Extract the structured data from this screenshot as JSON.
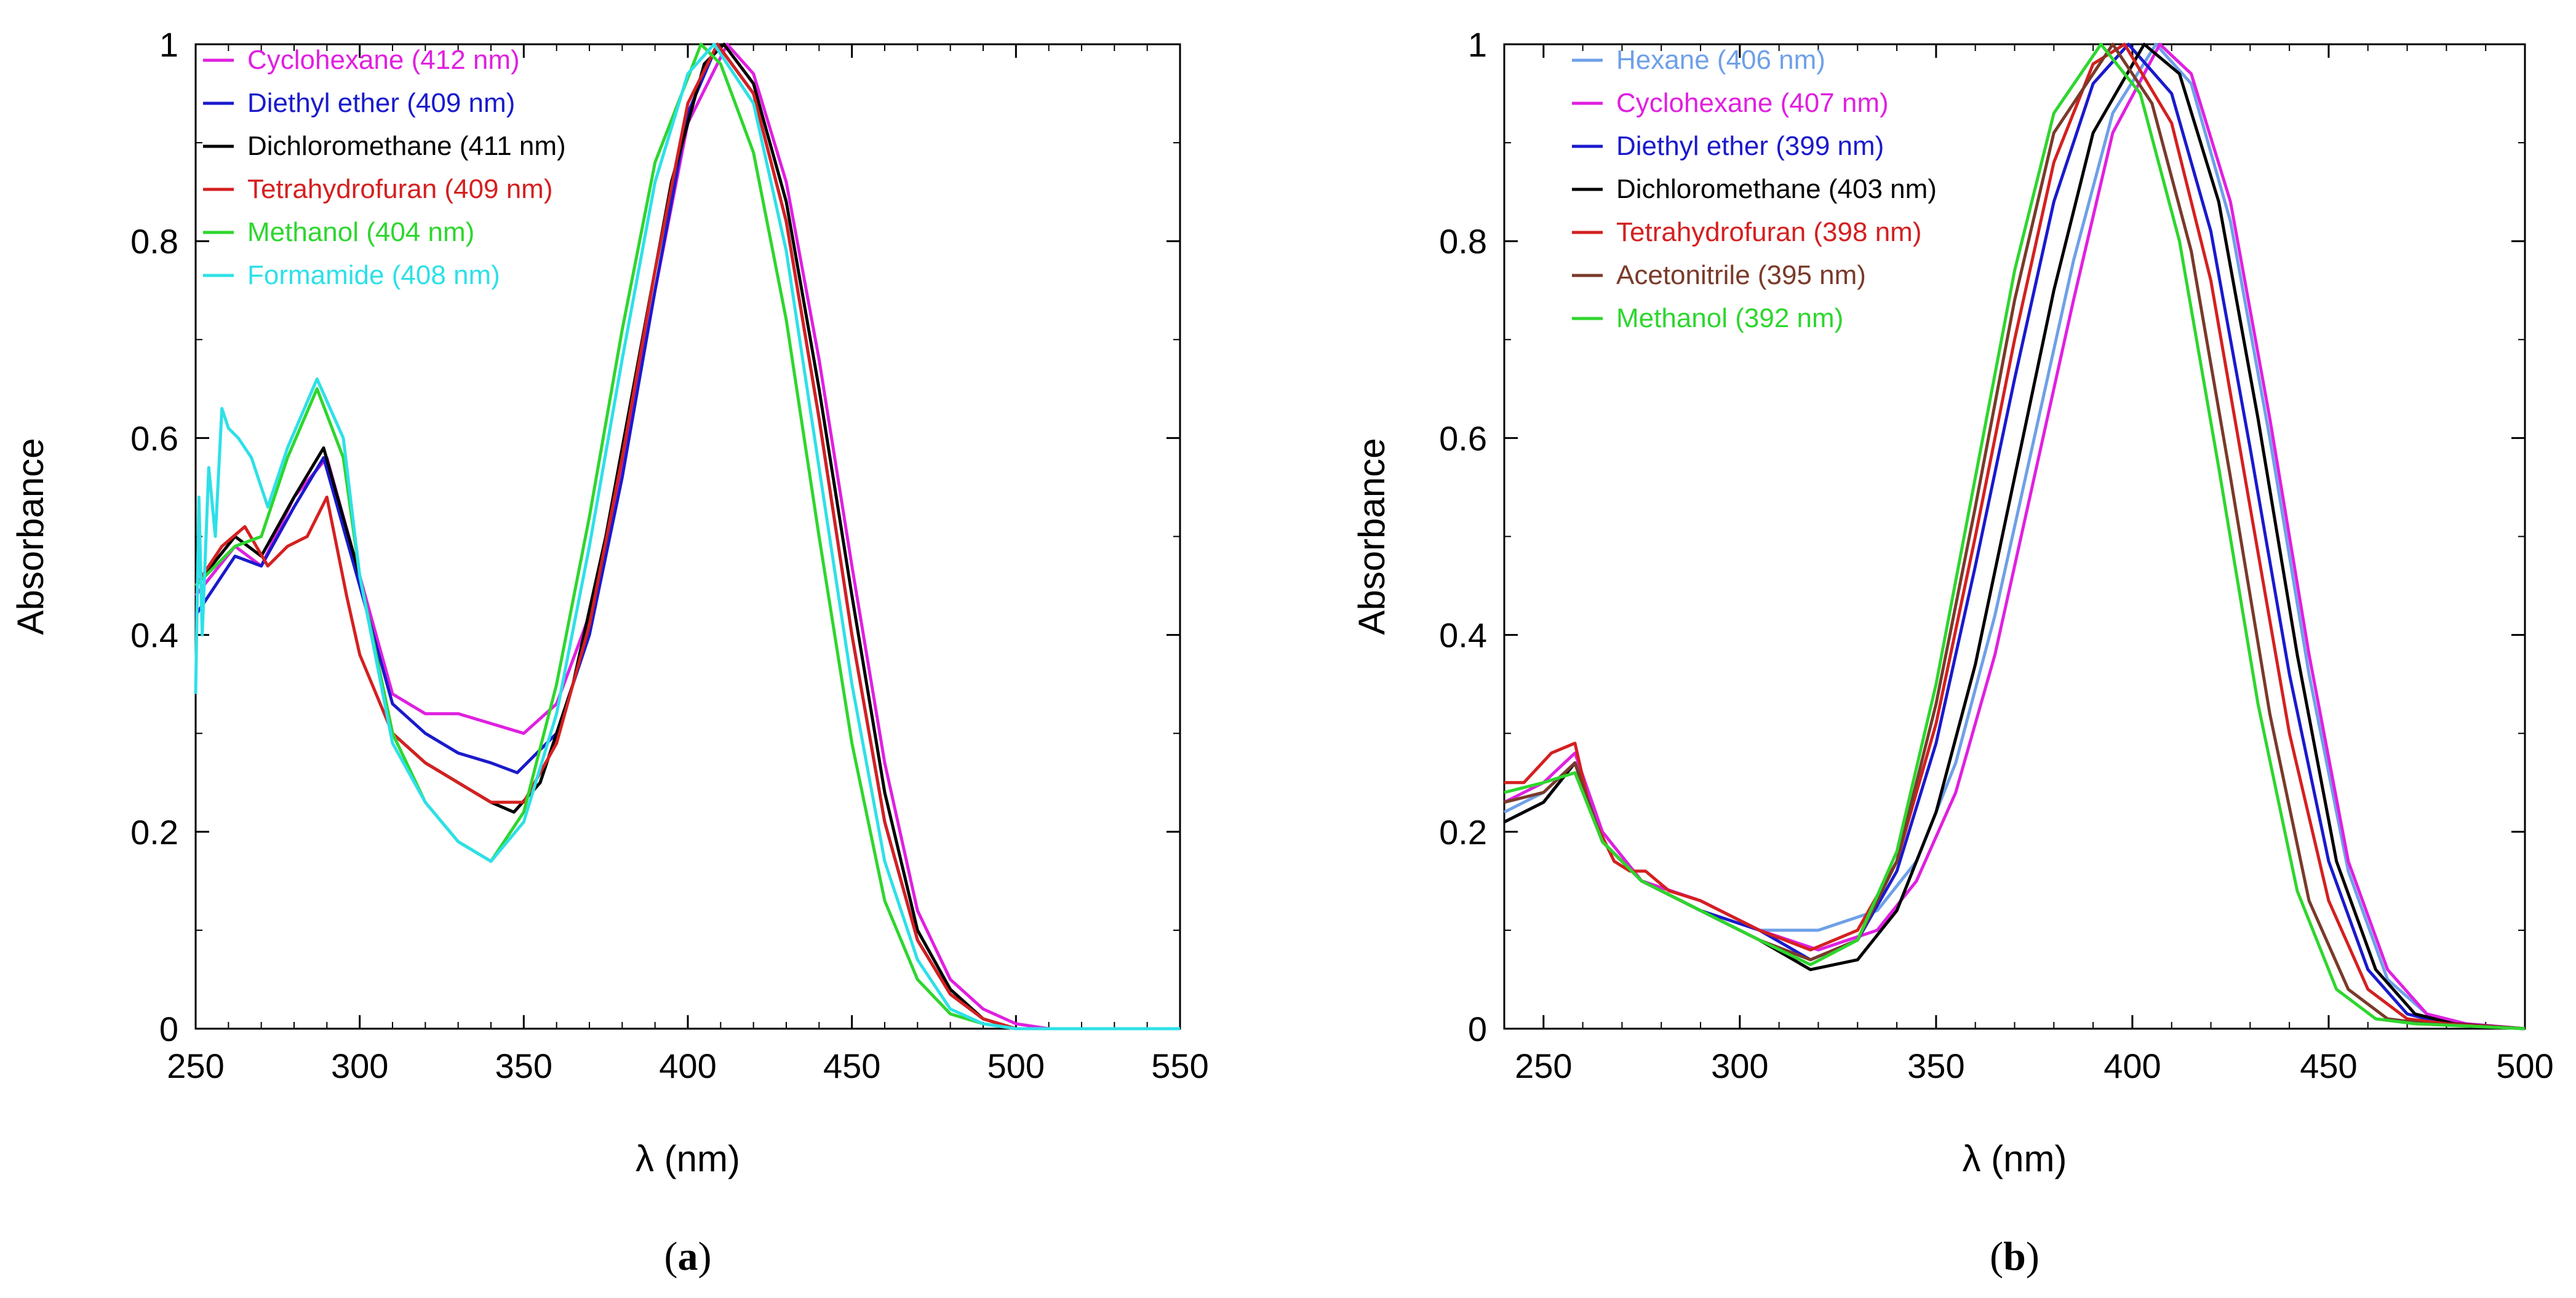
{
  "colors": {
    "hexane": "#6fa0e8",
    "cyclohexane": "#e020e0",
    "diethyl_ether": "#1a1acc",
    "dichloromethane": "#000000",
    "tetrahydrofuran": "#d42020",
    "acetonitrile": "#7a3a2a",
    "methanol": "#2ed62e",
    "formamide": "#2ee0e8"
  },
  "chart_data": [
    {
      "type": "line",
      "panel_label": "a",
      "xlabel": "λ (nm)",
      "ylabel": "Absorbance",
      "xlim": [
        250,
        550
      ],
      "ylim": [
        0,
        1
      ],
      "x_ticks": [
        250,
        300,
        350,
        400,
        450,
        500,
        550
      ],
      "x_tick_labels": [
        "250",
        "300",
        "350",
        "400",
        "450",
        "500",
        "550"
      ],
      "y_ticks": [
        0,
        0.2,
        0.4,
        0.6,
        0.8,
        1
      ],
      "y_tick_labels": [
        "0",
        "0.2",
        "0.4",
        "0.6",
        "0.8",
        "1"
      ],
      "legend_position": "top-left",
      "series": [
        {
          "name": "Cyclohexane",
          "peak_text": "(412 nm)",
          "color_key": "cyclohexane",
          "peak_nm": 412,
          "x": [
            250,
            262,
            270,
            280,
            290,
            300,
            310,
            320,
            330,
            340,
            350,
            360,
            370,
            380,
            390,
            400,
            412,
            420,
            430,
            440,
            450,
            460,
            470,
            480,
            490,
            500,
            510,
            550
          ],
          "y": [
            0.44,
            0.49,
            0.47,
            0.54,
            0.58,
            0.46,
            0.34,
            0.32,
            0.32,
            0.31,
            0.3,
            0.33,
            0.42,
            0.57,
            0.75,
            0.92,
            1.0,
            0.97,
            0.86,
            0.68,
            0.47,
            0.27,
            0.12,
            0.05,
            0.02,
            0.005,
            0,
            0
          ]
        },
        {
          "name": "Diethyl ether",
          "peak_text": "(409 nm)",
          "color_key": "diethyl_ether",
          "peak_nm": 409,
          "x": [
            250,
            262,
            270,
            280,
            289,
            300,
            310,
            320,
            330,
            340,
            348,
            360,
            370,
            380,
            390,
            400,
            409,
            420,
            430,
            440,
            450,
            460,
            470,
            480,
            490,
            500,
            550
          ],
          "y": [
            0.42,
            0.48,
            0.47,
            0.53,
            0.58,
            0.45,
            0.33,
            0.3,
            0.28,
            0.27,
            0.26,
            0.3,
            0.4,
            0.56,
            0.75,
            0.93,
            1.0,
            0.95,
            0.82,
            0.62,
            0.4,
            0.21,
            0.09,
            0.035,
            0.01,
            0,
            0
          ]
        },
        {
          "name": "Dichloromethane",
          "peak_text": "(411 nm)",
          "color_key": "dichloromethane",
          "peak_nm": 411,
          "x": [
            250,
            262,
            270,
            280,
            289,
            300,
            310,
            320,
            330,
            340,
            347,
            355,
            365,
            375,
            385,
            395,
            405,
            411,
            420,
            430,
            440,
            450,
            460,
            470,
            480,
            490,
            500,
            550
          ],
          "y": [
            0.45,
            0.5,
            0.48,
            0.54,
            0.59,
            0.46,
            0.3,
            0.27,
            0.25,
            0.23,
            0.22,
            0.25,
            0.35,
            0.5,
            0.68,
            0.86,
            0.98,
            1.0,
            0.96,
            0.84,
            0.65,
            0.44,
            0.24,
            0.1,
            0.04,
            0.01,
            0,
            0
          ]
        },
        {
          "name": "Tetrahydrofuran",
          "peak_text": "(409 nm)",
          "color_key": "tetrahydrofuran",
          "peak_nm": 409,
          "x": [
            250,
            258,
            265,
            272,
            278,
            284,
            290,
            296,
            300,
            310,
            320,
            330,
            340,
            350,
            360,
            370,
            380,
            390,
            400,
            409,
            420,
            430,
            440,
            450,
            460,
            470,
            480,
            490,
            500,
            550
          ],
          "y": [
            0.45,
            0.49,
            0.51,
            0.47,
            0.49,
            0.5,
            0.54,
            0.44,
            0.38,
            0.3,
            0.27,
            0.25,
            0.23,
            0.23,
            0.29,
            0.41,
            0.58,
            0.77,
            0.94,
            1.0,
            0.95,
            0.82,
            0.62,
            0.4,
            0.21,
            0.09,
            0.035,
            0.01,
            0,
            0
          ]
        },
        {
          "name": "Methanol",
          "peak_text": "(404 nm)",
          "color_key": "methanol",
          "peak_nm": 404,
          "x": [
            250,
            262,
            270,
            278,
            287,
            295,
            300,
            310,
            320,
            330,
            340,
            350,
            360,
            370,
            380,
            390,
            404,
            410,
            420,
            430,
            440,
            450,
            460,
            470,
            480,
            490,
            500,
            550
          ],
          "y": [
            0.45,
            0.49,
            0.5,
            0.58,
            0.65,
            0.58,
            0.46,
            0.3,
            0.23,
            0.19,
            0.17,
            0.22,
            0.35,
            0.52,
            0.71,
            0.88,
            1.0,
            0.98,
            0.89,
            0.72,
            0.5,
            0.29,
            0.13,
            0.05,
            0.015,
            0.005,
            0,
            0
          ]
        },
        {
          "name": "Formamide",
          "peak_text": "(408 nm)",
          "color_key": "formamide",
          "peak_nm": 408,
          "x": [
            250,
            251,
            252,
            254,
            256,
            258,
            260,
            263,
            267,
            272,
            278,
            287,
            295,
            300,
            310,
            320,
            330,
            340,
            350,
            360,
            370,
            380,
            390,
            400,
            408,
            420,
            430,
            440,
            450,
            460,
            470,
            480,
            490,
            500,
            550
          ],
          "y": [
            0.34,
            0.54,
            0.4,
            0.57,
            0.5,
            0.63,
            0.61,
            0.6,
            0.58,
            0.53,
            0.59,
            0.66,
            0.6,
            0.46,
            0.29,
            0.23,
            0.19,
            0.17,
            0.21,
            0.32,
            0.49,
            0.68,
            0.86,
            0.97,
            1.0,
            0.94,
            0.79,
            0.57,
            0.35,
            0.17,
            0.07,
            0.02,
            0.005,
            0,
            0
          ]
        }
      ]
    },
    {
      "type": "line",
      "panel_label": "b",
      "xlabel": "λ (nm)",
      "ylabel": "Absorbance",
      "xlim": [
        240,
        500
      ],
      "ylim": [
        0,
        1
      ],
      "x_ticks": [
        250,
        300,
        350,
        400,
        450,
        500
      ],
      "x_tick_labels": [
        "250",
        "300",
        "350",
        "400",
        "450",
        "500"
      ],
      "y_ticks": [
        0,
        0.2,
        0.4,
        0.6,
        0.8,
        1
      ],
      "y_tick_labels": [
        "0",
        "0.2",
        "0.4",
        "0.6",
        "0.8",
        "1"
      ],
      "legend_position": "top-left",
      "series": [
        {
          "name": "Hexane",
          "peak_text": "(406 nm)",
          "color_key": "hexane",
          "peak_nm": 406,
          "x": [
            240,
            250,
            258,
            265,
            275,
            290,
            305,
            320,
            335,
            345,
            355,
            365,
            375,
            385,
            395,
            406,
            415,
            425,
            435,
            445,
            455,
            465,
            475,
            485,
            500
          ],
          "y": [
            0.22,
            0.24,
            0.27,
            0.2,
            0.15,
            0.13,
            0.1,
            0.1,
            0.12,
            0.17,
            0.27,
            0.42,
            0.6,
            0.78,
            0.93,
            1.0,
            0.96,
            0.82,
            0.6,
            0.36,
            0.16,
            0.05,
            0.015,
            0.005,
            0
          ]
        },
        {
          "name": "Cyclohexane",
          "peak_text": "(407 nm)",
          "color_key": "cyclohexane",
          "peak_nm": 407,
          "x": [
            240,
            250,
            258,
            265,
            275,
            290,
            305,
            320,
            335,
            345,
            355,
            365,
            375,
            385,
            395,
            407,
            415,
            425,
            435,
            445,
            455,
            465,
            475,
            485,
            500
          ],
          "y": [
            0.23,
            0.25,
            0.28,
            0.2,
            0.15,
            0.13,
            0.1,
            0.08,
            0.1,
            0.15,
            0.24,
            0.38,
            0.56,
            0.74,
            0.91,
            1.0,
            0.97,
            0.84,
            0.62,
            0.38,
            0.17,
            0.06,
            0.015,
            0.005,
            0
          ]
        },
        {
          "name": "Diethyl ether",
          "peak_text": "(399 nm)",
          "color_key": "diethyl_ether",
          "peak_nm": 399,
          "x": [
            240,
            250,
            258,
            265,
            275,
            290,
            305,
            318,
            330,
            340,
            350,
            360,
            370,
            380,
            390,
            399,
            410,
            420,
            430,
            440,
            450,
            460,
            470,
            480,
            500
          ],
          "y": [
            0.21,
            0.23,
            0.27,
            0.19,
            0.15,
            0.12,
            0.1,
            0.07,
            0.09,
            0.16,
            0.29,
            0.47,
            0.66,
            0.84,
            0.96,
            1.0,
            0.95,
            0.81,
            0.59,
            0.36,
            0.17,
            0.06,
            0.015,
            0.005,
            0
          ]
        },
        {
          "name": "Dichloromethane",
          "peak_text": "(403 nm)",
          "color_key": "dichloromethane",
          "peak_nm": 403,
          "x": [
            240,
            250,
            258,
            265,
            275,
            290,
            305,
            318,
            330,
            340,
            350,
            360,
            370,
            380,
            390,
            403,
            412,
            422,
            432,
            442,
            452,
            462,
            472,
            482,
            500
          ],
          "y": [
            0.21,
            0.23,
            0.27,
            0.19,
            0.15,
            0.12,
            0.09,
            0.06,
            0.07,
            0.12,
            0.22,
            0.37,
            0.56,
            0.75,
            0.91,
            1.0,
            0.97,
            0.84,
            0.62,
            0.38,
            0.17,
            0.06,
            0.015,
            0.005,
            0
          ]
        },
        {
          "name": "Tetrahydrofuran",
          "peak_text": "(398 nm)",
          "color_key": "tetrahydrofuran",
          "peak_nm": 398,
          "x": [
            240,
            245,
            252,
            258,
            262,
            268,
            272,
            276,
            282,
            290,
            305,
            318,
            330,
            340,
            350,
            360,
            370,
            380,
            390,
            398,
            410,
            420,
            430,
            440,
            450,
            460,
            470,
            480,
            500
          ],
          "y": [
            0.25,
            0.25,
            0.28,
            0.29,
            0.22,
            0.17,
            0.16,
            0.16,
            0.14,
            0.13,
            0.1,
            0.08,
            0.1,
            0.17,
            0.31,
            0.5,
            0.7,
            0.88,
            0.98,
            1.0,
            0.92,
            0.76,
            0.53,
            0.3,
            0.13,
            0.04,
            0.01,
            0.005,
            0
          ]
        },
        {
          "name": "Acetonitrile",
          "peak_text": "(395 nm)",
          "color_key": "acetonitrile",
          "peak_nm": 395,
          "x": [
            240,
            250,
            258,
            265,
            275,
            290,
            305,
            318,
            330,
            340,
            350,
            360,
            370,
            380,
            395,
            405,
            415,
            425,
            435,
            445,
            455,
            465,
            475,
            500
          ],
          "y": [
            0.23,
            0.24,
            0.27,
            0.19,
            0.15,
            0.12,
            0.09,
            0.07,
            0.09,
            0.17,
            0.33,
            0.53,
            0.74,
            0.91,
            1.0,
            0.94,
            0.79,
            0.56,
            0.32,
            0.13,
            0.04,
            0.01,
            0.005,
            0
          ]
        },
        {
          "name": "Methanol",
          "peak_text": "(392 nm)",
          "color_key": "methanol",
          "peak_nm": 392,
          "x": [
            240,
            250,
            258,
            265,
            275,
            290,
            305,
            318,
            330,
            340,
            350,
            360,
            370,
            380,
            392,
            402,
            412,
            422,
            432,
            442,
            452,
            462,
            472,
            500
          ],
          "y": [
            0.24,
            0.25,
            0.26,
            0.19,
            0.15,
            0.12,
            0.09,
            0.065,
            0.09,
            0.18,
            0.35,
            0.56,
            0.77,
            0.93,
            1.0,
            0.95,
            0.8,
            0.57,
            0.33,
            0.14,
            0.04,
            0.01,
            0.005,
            0
          ]
        }
      ]
    }
  ]
}
